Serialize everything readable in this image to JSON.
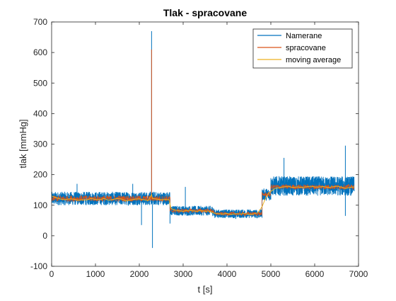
{
  "chart_data": {
    "type": "line",
    "title": "Tlak - spracovane",
    "xlabel": "t [s]",
    "ylabel": "tlak [mmHg]",
    "xlim": [
      0,
      7000
    ],
    "ylim": [
      -100,
      700
    ],
    "xticks": [
      0,
      1000,
      2000,
      3000,
      4000,
      5000,
      6000,
      7000
    ],
    "yticks": [
      -100,
      0,
      100,
      200,
      300,
      400,
      500,
      600,
      700
    ],
    "grid": false,
    "legend_position": "top-right",
    "series": [
      {
        "name": "Namerane",
        "color": "#0072BD",
        "level_segments": [
          {
            "x": [
              0,
              2700
            ],
            "center": 122,
            "spread": 22
          },
          {
            "x": [
              2700,
              3700
            ],
            "center": 82,
            "spread": 16
          },
          {
            "x": [
              3700,
              4800
            ],
            "center": 72,
            "spread": 14
          },
          {
            "x": [
              4800,
              5000
            ],
            "center": 135,
            "spread": 20
          },
          {
            "x": [
              5000,
              6900
            ],
            "center": 163,
            "spread": 32
          }
        ],
        "spikes": [
          {
            "x": 580,
            "y": 170
          },
          {
            "x": 1850,
            "y": 170
          },
          {
            "x": 2050,
            "y": 35
          },
          {
            "x": 2280,
            "y": 670
          },
          {
            "x": 2300,
            "y": -40
          },
          {
            "x": 2700,
            "y": 40
          },
          {
            "x": 3050,
            "y": 160
          },
          {
            "x": 4200,
            "y": 55
          },
          {
            "x": 5300,
            "y": 255
          },
          {
            "x": 6700,
            "y": 295
          },
          {
            "x": 6700,
            "y": 65
          }
        ]
      },
      {
        "name": "spracovane",
        "color": "#D95319",
        "level_segments": [
          {
            "x": [
              0,
              2700
            ],
            "center": 122,
            "spread": 10
          },
          {
            "x": [
              2700,
              3700
            ],
            "center": 82,
            "spread": 7
          },
          {
            "x": [
              3700,
              4800
            ],
            "center": 72,
            "spread": 6
          },
          {
            "x": [
              4800,
              5000
            ],
            "center": 135,
            "spread": 8
          },
          {
            "x": [
              5000,
              6900
            ],
            "center": 160,
            "spread": 8
          }
        ],
        "spikes": [
          {
            "x": 2280,
            "y": 610
          }
        ]
      },
      {
        "name": "moving average",
        "color": "#EDB120",
        "points": [
          [
            0,
            130
          ],
          [
            100,
            125
          ],
          [
            200,
            120
          ],
          [
            300,
            118
          ],
          [
            400,
            121
          ],
          [
            500,
            120
          ],
          [
            600,
            116
          ],
          [
            700,
            118
          ],
          [
            800,
            117
          ],
          [
            900,
            122
          ],
          [
            1000,
            119
          ],
          [
            1100,
            118
          ],
          [
            1200,
            122
          ],
          [
            1300,
            116
          ],
          [
            1400,
            119
          ],
          [
            1500,
            122
          ],
          [
            1600,
            120
          ],
          [
            1700,
            114
          ],
          [
            1800,
            117
          ],
          [
            1900,
            120
          ],
          [
            2000,
            121
          ],
          [
            2100,
            118
          ],
          [
            2200,
            115
          ],
          [
            2280,
            135
          ],
          [
            2300,
            122
          ],
          [
            2400,
            120
          ],
          [
            2500,
            118
          ],
          [
            2600,
            119
          ],
          [
            2680,
            118
          ],
          [
            2720,
            90
          ],
          [
            2800,
            84
          ],
          [
            2900,
            82
          ],
          [
            3000,
            80
          ],
          [
            3100,
            83
          ],
          [
            3200,
            82
          ],
          [
            3300,
            80
          ],
          [
            3400,
            82
          ],
          [
            3500,
            80
          ],
          [
            3600,
            81
          ],
          [
            3700,
            74
          ],
          [
            3800,
            72
          ],
          [
            3900,
            71
          ],
          [
            4000,
            73
          ],
          [
            4100,
            70
          ],
          [
            4200,
            72
          ],
          [
            4300,
            71
          ],
          [
            4400,
            73
          ],
          [
            4500,
            70
          ],
          [
            4600,
            71
          ],
          [
            4700,
            75
          ],
          [
            4800,
            95
          ],
          [
            4900,
            130
          ],
          [
            5000,
            145
          ],
          [
            5100,
            155
          ],
          [
            5200,
            158
          ],
          [
            5300,
            160
          ],
          [
            5400,
            162
          ],
          [
            5500,
            158
          ],
          [
            5600,
            160
          ],
          [
            5700,
            158
          ],
          [
            5800,
            160
          ],
          [
            5900,
            162
          ],
          [
            6000,
            160
          ],
          [
            6100,
            159
          ],
          [
            6200,
            161
          ],
          [
            6300,
            158
          ],
          [
            6400,
            160
          ],
          [
            6500,
            162
          ],
          [
            6600,
            160
          ],
          [
            6700,
            155
          ],
          [
            6800,
            158
          ],
          [
            6900,
            160
          ]
        ]
      }
    ]
  }
}
